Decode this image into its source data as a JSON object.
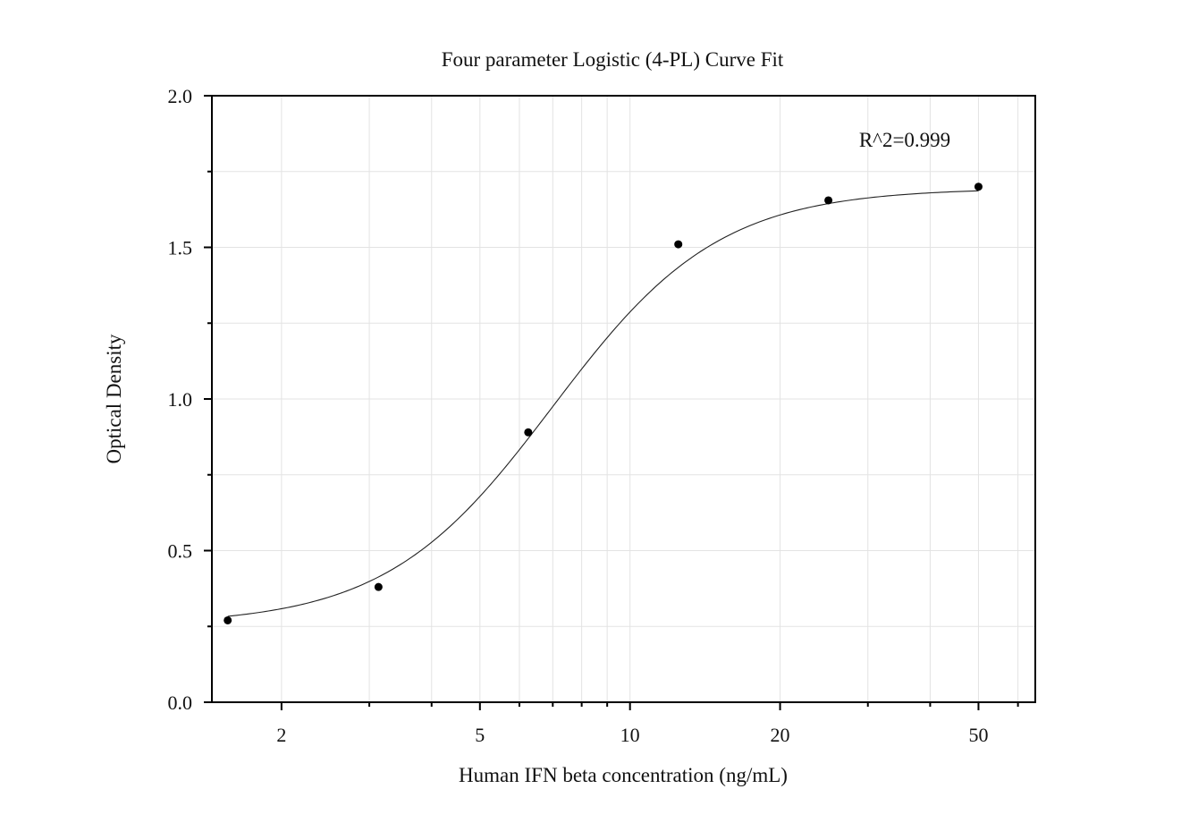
{
  "chart_data": {
    "type": "scatter",
    "title": "Four parameter Logistic (4-PL) Curve Fit",
    "xlabel": "Human IFN beta concentration (ng/mL)",
    "ylabel": "Optical Density",
    "x_scale": "log",
    "xlim": [
      1.45,
      65
    ],
    "ylim": [
      0,
      2.0
    ],
    "x_ticks": [
      2,
      5,
      10,
      20,
      50
    ],
    "x_tick_labels": [
      "2",
      "5",
      "10",
      "20",
      "50"
    ],
    "y_ticks": [
      0.0,
      0.5,
      1.0,
      1.5,
      2.0
    ],
    "y_tick_labels": [
      "0.0",
      "0.5",
      "1.0",
      "1.5",
      "2.0"
    ],
    "grid": true,
    "series": [
      {
        "marker": "circle",
        "color": "#000000",
        "x": [
          1.56,
          3.13,
          6.25,
          12.5,
          25,
          50
        ],
        "y": [
          0.27,
          0.38,
          0.89,
          1.51,
          1.655,
          1.7
        ]
      }
    ],
    "fit": {
      "model": "4PL",
      "bottom": 0.255,
      "top": 1.695,
      "ec50": 7.0,
      "hill": 2.6,
      "color": "#222222"
    },
    "annotations": [
      {
        "text": "R^2=0.999"
      }
    ]
  }
}
